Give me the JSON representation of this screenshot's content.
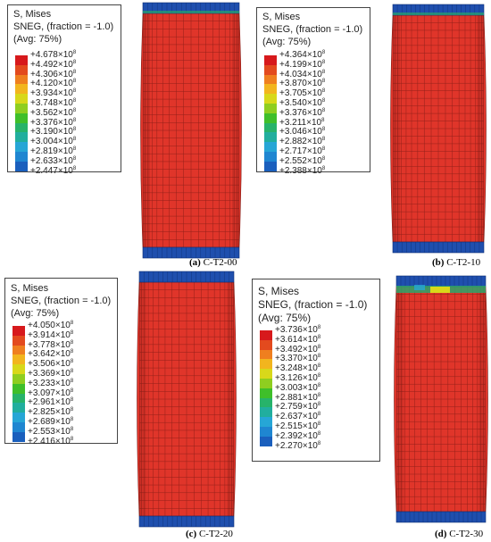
{
  "panels": [
    {
      "id": "a",
      "legend": {
        "title1": "S, Mises",
        "title2": "SNEG, (fraction = -1.0)",
        "title3": "(Avg: 75%)",
        "values": [
          "+4.678",
          "+4.492",
          "+4.306",
          "+4.120",
          "+3.934",
          "+3.748",
          "+3.562",
          "+3.376",
          "+3.190",
          "+3.004",
          "+2.819",
          "+2.633",
          "+2.447"
        ],
        "exponent": "8"
      },
      "caption": {
        "letter": "(a)",
        "text": "C-T2-00"
      }
    },
    {
      "id": "b",
      "legend": {
        "title1": "S, Mises",
        "title2": "SNEG, (fraction = -1.0)",
        "title3": "(Avg: 75%)",
        "values": [
          "+4.364",
          "+4.199",
          "+4.034",
          "+3.870",
          "+3.705",
          "+3.540",
          "+3.376",
          "+3.211",
          "+3.046",
          "+2.882",
          "+2.717",
          "+2.552",
          "+2.388"
        ],
        "exponent": "8"
      },
      "caption": {
        "letter": "(b)",
        "text": "C-T2-10"
      }
    },
    {
      "id": "c",
      "legend": {
        "title1": "S, Mises",
        "title2": "SNEG, (fraction = -1.0)",
        "title3": "(Avg: 75%)",
        "values": [
          "+4.050",
          "+3.914",
          "+3.778",
          "+3.642",
          "+3.506",
          "+3.369",
          "+3.233",
          "+3.097",
          "+2.961",
          "+2.825",
          "+2.689",
          "+2.553",
          "+2.416"
        ],
        "exponent": "8"
      },
      "caption": {
        "letter": "(c)",
        "text": "C-T2-20"
      }
    },
    {
      "id": "d",
      "legend": {
        "title1": "S, Mises",
        "title2": "SNEG, (fraction = -1.0)",
        "title3": "(Avg: 75%)",
        "values": [
          "+3.736",
          "+3.614",
          "+3.492",
          "+3.370",
          "+3.248",
          "+3.126",
          "+3.003",
          "+2.881",
          "+2.759",
          "+2.637",
          "+2.515",
          "+2.392",
          "+2.270"
        ],
        "exponent": "8"
      },
      "caption": {
        "letter": "(d)",
        "text": "C-T2-30"
      }
    }
  ],
  "colors": {
    "scale": [
      "#d7191c",
      "#e34a1e",
      "#ef7f1f",
      "#f2b51e",
      "#d8d81a",
      "#8fce20",
      "#3fbf2a",
      "#27b36a",
      "#21ae9e",
      "#26a6d6",
      "#1f86d1",
      "#1a5fbd",
      "#1540a8"
    ],
    "body": "#e0352a",
    "mesh": "#7a1a14",
    "cap_blue": "#1f4fae",
    "cap_green": "#2aa66a"
  }
}
